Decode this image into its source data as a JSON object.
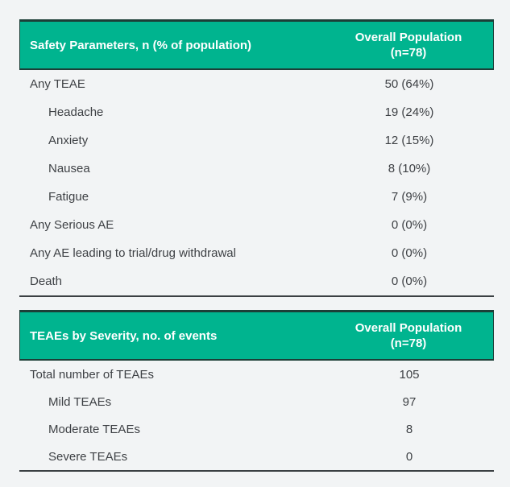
{
  "colors": {
    "header_bg": "#00b48f",
    "header_text": "#ffffff",
    "header_border": "#1c3e37",
    "table_bottom_border": "#3b4043",
    "row_text": "#3e4145",
    "page_background": "#f2f4f5"
  },
  "tables": [
    {
      "name": "safety-parameters",
      "header": {
        "left": "Safety Parameters, n (% of population)",
        "right_line1": "Overall Population",
        "right_line2": "(n=78)"
      },
      "rows": [
        {
          "label": "Any TEAE",
          "value": "50 (64%)",
          "indent": false
        },
        {
          "label": "Headache",
          "value": "19 (24%)",
          "indent": true
        },
        {
          "label": "Anxiety",
          "value": "12 (15%)",
          "indent": true
        },
        {
          "label": "Nausea",
          "value": "8 (10%)",
          "indent": true
        },
        {
          "label": "Fatigue",
          "value": "7 (9%)",
          "indent": true
        },
        {
          "label": "Any Serious AE",
          "value": "0 (0%)",
          "indent": false
        },
        {
          "label": "Any AE leading to trial/drug withdrawal",
          "value": "0 (0%)",
          "indent": false
        },
        {
          "label": "Death",
          "value": "0 (0%)",
          "indent": false
        }
      ]
    },
    {
      "name": "teaes-by-severity",
      "header": {
        "left": "TEAEs by Severity, no. of events",
        "right_line1": "Overall Population",
        "right_line2": "(n=78)"
      },
      "rows": [
        {
          "label": "Total number of TEAEs",
          "value": "105",
          "indent": false
        },
        {
          "label": "Mild TEAEs",
          "value": "97",
          "indent": true
        },
        {
          "label": "Moderate TEAEs",
          "value": "8",
          "indent": true
        },
        {
          "label": "Severe TEAEs",
          "value": "0",
          "indent": true
        }
      ]
    }
  ]
}
